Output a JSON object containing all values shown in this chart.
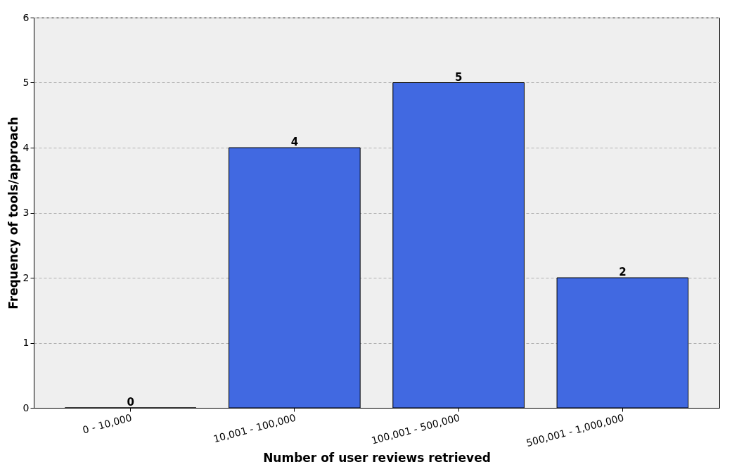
{
  "chart_data": {
    "type": "bar",
    "xlabel": "Number of user reviews retrieved",
    "ylabel": "Frequency of tools/approach",
    "categories": [
      "0 - 10,000",
      "10,001 - 100,000",
      "100,001 - 500,000",
      "500,001 - 1,000,000"
    ],
    "values": [
      0,
      4,
      5,
      2
    ],
    "color": "#4169e1",
    "ylim": [
      0,
      6
    ],
    "yticks": [
      0,
      1,
      2,
      3,
      4,
      5,
      6
    ],
    "grid": "y",
    "data_labels": true
  }
}
